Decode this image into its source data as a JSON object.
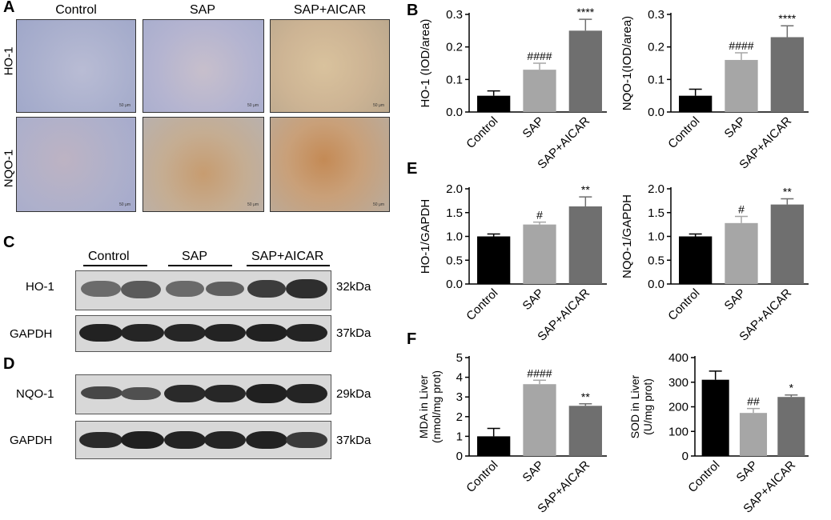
{
  "panels": {
    "A": {
      "label": "A",
      "columns": [
        "Control",
        "SAP",
        "SAP+AICAR"
      ],
      "rows": [
        "HO-1",
        "NQO-1"
      ],
      "scale_bar": "50 μm"
    },
    "C": {
      "label": "C",
      "groups": [
        "Control",
        "SAP",
        "SAP+AICAR"
      ],
      "rows": [
        {
          "name": "HO-1",
          "kda": "32kDa"
        },
        {
          "name": "GAPDH",
          "kda": "37kDa"
        }
      ]
    },
    "D": {
      "label": "D",
      "rows": [
        {
          "name": "NQO-1",
          "kda": "29kDa"
        },
        {
          "name": "GAPDH",
          "kda": "37kDa"
        }
      ]
    },
    "B": {
      "label": "B"
    },
    "E": {
      "label": "E"
    },
    "F": {
      "label": "F"
    }
  },
  "colors": {
    "control": "#000000",
    "sap": "#a6a6a6",
    "sap_aicar": "#6f6f6f"
  },
  "chart_data": [
    {
      "id": "B1",
      "type": "bar",
      "categories": [
        "Control",
        "SAP",
        "SAP+AICAR"
      ],
      "values": [
        0.05,
        0.13,
        0.25
      ],
      "errors": [
        0.015,
        0.02,
        0.035
      ],
      "ylabel": "HO-1 (IOD/area)",
      "ylim": [
        0,
        0.3
      ],
      "yticks": [
        "0.0",
        "0.1",
        "0.2",
        "0.3"
      ],
      "annotations": [
        "",
        "####",
        "****"
      ]
    },
    {
      "id": "B2",
      "type": "bar",
      "categories": [
        "Control",
        "SAP",
        "SAP+AICAR"
      ],
      "values": [
        0.05,
        0.16,
        0.23
      ],
      "errors": [
        0.02,
        0.022,
        0.035
      ],
      "ylabel": "NQO-1(IOD/area)",
      "ylim": [
        0,
        0.3
      ],
      "yticks": [
        "0.0",
        "0.1",
        "0.2",
        "0.3"
      ],
      "annotations": [
        "",
        "####",
        "****"
      ]
    },
    {
      "id": "E1",
      "type": "bar",
      "categories": [
        "Control",
        "SAP",
        "SAP+AICAR"
      ],
      "values": [
        1.0,
        1.25,
        1.63
      ],
      "errors": [
        0.05,
        0.05,
        0.2
      ],
      "ylabel": "HO-1/GAPDH",
      "ylim": [
        0,
        2.0
      ],
      "yticks": [
        "0.0",
        "0.5",
        "1.0",
        "1.5",
        "2.0"
      ],
      "annotations": [
        "",
        "#",
        "**"
      ]
    },
    {
      "id": "E2",
      "type": "bar",
      "categories": [
        "Control",
        "SAP",
        "SAP+AICAR"
      ],
      "values": [
        1.0,
        1.28,
        1.67
      ],
      "errors": [
        0.05,
        0.14,
        0.12
      ],
      "ylabel": "NQO-1/GAPDH",
      "ylim": [
        0,
        2.0
      ],
      "yticks": [
        "0.0",
        "0.5",
        "1.0",
        "1.5",
        "2.0"
      ],
      "annotations": [
        "",
        "#",
        "**"
      ]
    },
    {
      "id": "F1",
      "type": "bar",
      "categories": [
        "Control",
        "SAP",
        "SAP+AICAR"
      ],
      "values": [
        1.0,
        3.65,
        2.55
      ],
      "errors": [
        0.4,
        0.2,
        0.1
      ],
      "ylabel": "MDA in Liver",
      "ylabel2": "(nmol/mg prot)",
      "ylim": [
        0,
        5
      ],
      "yticks": [
        "0",
        "1",
        "2",
        "3",
        "4",
        "5"
      ],
      "annotations": [
        "",
        "####",
        "**"
      ]
    },
    {
      "id": "F2",
      "type": "bar",
      "categories": [
        "Control",
        "SAP",
        "SAP+AICAR"
      ],
      "values": [
        310,
        175,
        240
      ],
      "errors": [
        35,
        18,
        8
      ],
      "ylabel": "SOD in Liver",
      "ylabel2": "(U/mg prot)",
      "ylim": [
        0,
        400
      ],
      "yticks": [
        "0",
        "100",
        "200",
        "300",
        "400"
      ],
      "annotations": [
        "",
        "##",
        "*"
      ]
    }
  ]
}
